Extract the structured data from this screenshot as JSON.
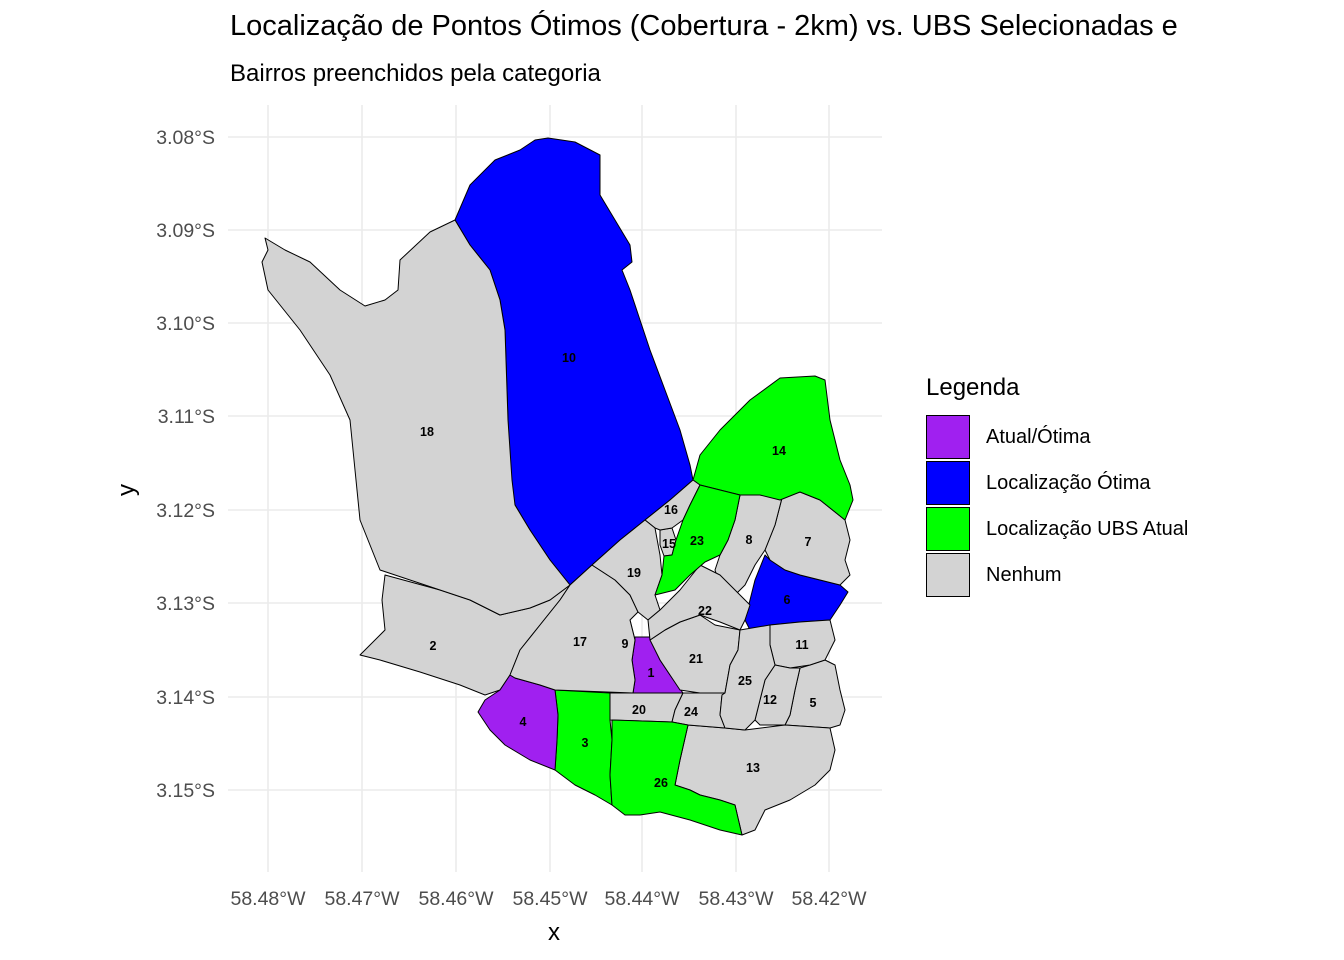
{
  "title": "Localização de Pontos Ótimos (Cobertura - 2km) vs. UBS Selecionadas e",
  "subtitle": "Bairros preenchidos pela categoria",
  "xlabel": "x",
  "ylabel": "y",
  "x_ticks": [
    "58.48°W",
    "58.47°W",
    "58.46°W",
    "58.45°W",
    "58.44°W",
    "58.43°W",
    "58.42°W"
  ],
  "y_ticks": [
    "3.08°S",
    "3.09°S",
    "3.10°S",
    "3.11°S",
    "3.12°S",
    "3.13°S",
    "3.14°S",
    "3.15°S"
  ],
  "legend": {
    "title": "Legenda",
    "items": [
      {
        "label": "Atual/Ótima",
        "color": "#a020f0"
      },
      {
        "label": "Localização Ótima",
        "color": "#0000ff"
      },
      {
        "label": "Localização UBS Atual",
        "color": "#00ff00"
      },
      {
        "label": "Nenhum",
        "color": "#d3d3d3"
      }
    ]
  },
  "colors": {
    "purple": "#a020f0",
    "blue": "#0000ff",
    "green": "#00ff00",
    "grey": "#d3d3d3",
    "grid": "#ebebeb",
    "border": "#000000"
  },
  "chart_data": {
    "type": "map",
    "xlim": [
      -58.482,
      -58.415
    ],
    "ylim": [
      -3.155,
      -3.078
    ],
    "neighborhoods": [
      {
        "id": "1",
        "category": "Atual/Ótima"
      },
      {
        "id": "2",
        "category": "Nenhum"
      },
      {
        "id": "3",
        "category": "Localização UBS Atual"
      },
      {
        "id": "4",
        "category": "Atual/Ótima"
      },
      {
        "id": "5",
        "category": "Nenhum"
      },
      {
        "id": "6",
        "category": "Localização Ótima"
      },
      {
        "id": "7",
        "category": "Nenhum"
      },
      {
        "id": "8",
        "category": "Nenhum"
      },
      {
        "id": "9",
        "category": "Nenhum"
      },
      {
        "id": "10",
        "category": "Localização Ótima"
      },
      {
        "id": "11",
        "category": "Nenhum"
      },
      {
        "id": "12",
        "category": "Nenhum"
      },
      {
        "id": "13",
        "category": "Nenhum"
      },
      {
        "id": "14",
        "category": "Localização UBS Atual"
      },
      {
        "id": "15",
        "category": "Nenhum"
      },
      {
        "id": "16",
        "category": "Nenhum"
      },
      {
        "id": "17",
        "category": "Nenhum"
      },
      {
        "id": "18",
        "category": "Nenhum"
      },
      {
        "id": "19",
        "category": "Nenhum"
      },
      {
        "id": "20",
        "category": "Nenhum"
      },
      {
        "id": "21",
        "category": "Nenhum"
      },
      {
        "id": "22",
        "category": "Nenhum"
      },
      {
        "id": "23",
        "category": "Localização UBS Atual"
      },
      {
        "id": "24",
        "category": "Nenhum"
      },
      {
        "id": "25",
        "category": "Nenhum"
      },
      {
        "id": "26",
        "category": "Localização UBS Atual"
      }
    ]
  }
}
